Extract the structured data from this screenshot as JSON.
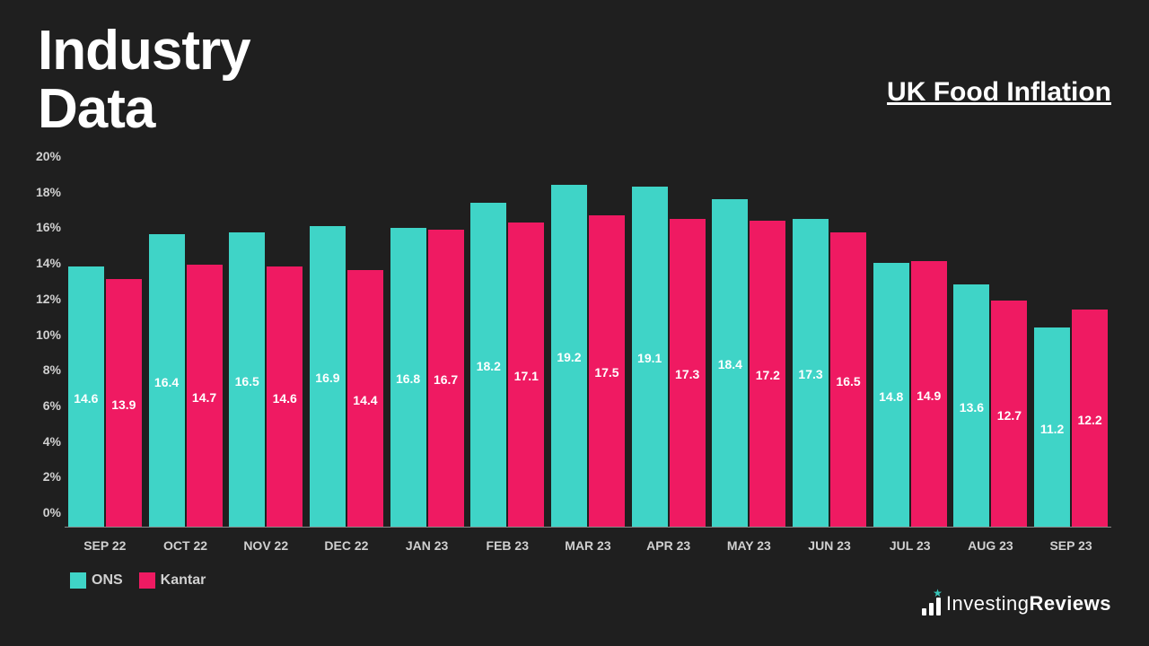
{
  "title_line1": "Industry",
  "title_line2": "Data",
  "subtitle": "UK Food Inflation",
  "chart": {
    "type": "bar",
    "ylim": [
      0,
      20
    ],
    "ytick_step": 2,
    "ytick_suffix": "%",
    "background_color": "#1f1f1f",
    "text_color": "#d0d0d0",
    "axis_color": "#888888",
    "bar_label_color": "#ffffff",
    "bar_label_fontsize": 14,
    "xlabel_fontsize": 14,
    "ylabel_fontsize": 14,
    "series": [
      {
        "name": "ONS",
        "color": "#3fd4c7"
      },
      {
        "name": "Kantar",
        "color": "#ef1a62"
      }
    ],
    "categories": [
      "SEP 22",
      "OCT 22",
      "NOV 22",
      "DEC 22",
      "JAN 23",
      "FEB 23",
      "MAR 23",
      "APR 23",
      "MAY 23",
      "JUN 23",
      "JUL 23",
      "AUG 23",
      "SEP 23"
    ],
    "data": {
      "ONS": [
        14.6,
        16.4,
        16.5,
        16.9,
        16.8,
        18.2,
        19.2,
        19.1,
        18.4,
        17.3,
        14.8,
        13.6,
        11.2
      ],
      "Kantar": [
        13.9,
        14.7,
        14.6,
        14.4,
        16.7,
        17.1,
        17.5,
        17.3,
        17.2,
        16.5,
        14.9,
        12.7,
        12.2
      ]
    }
  },
  "legend": {
    "items": [
      {
        "label": "ONS",
        "color": "#3fd4c7"
      },
      {
        "label": "Kantar",
        "color": "#ef1a62"
      }
    ]
  },
  "logo": {
    "text_light": "Investing",
    "text_bold": "Reviews",
    "accent_color": "#39c6b9"
  }
}
